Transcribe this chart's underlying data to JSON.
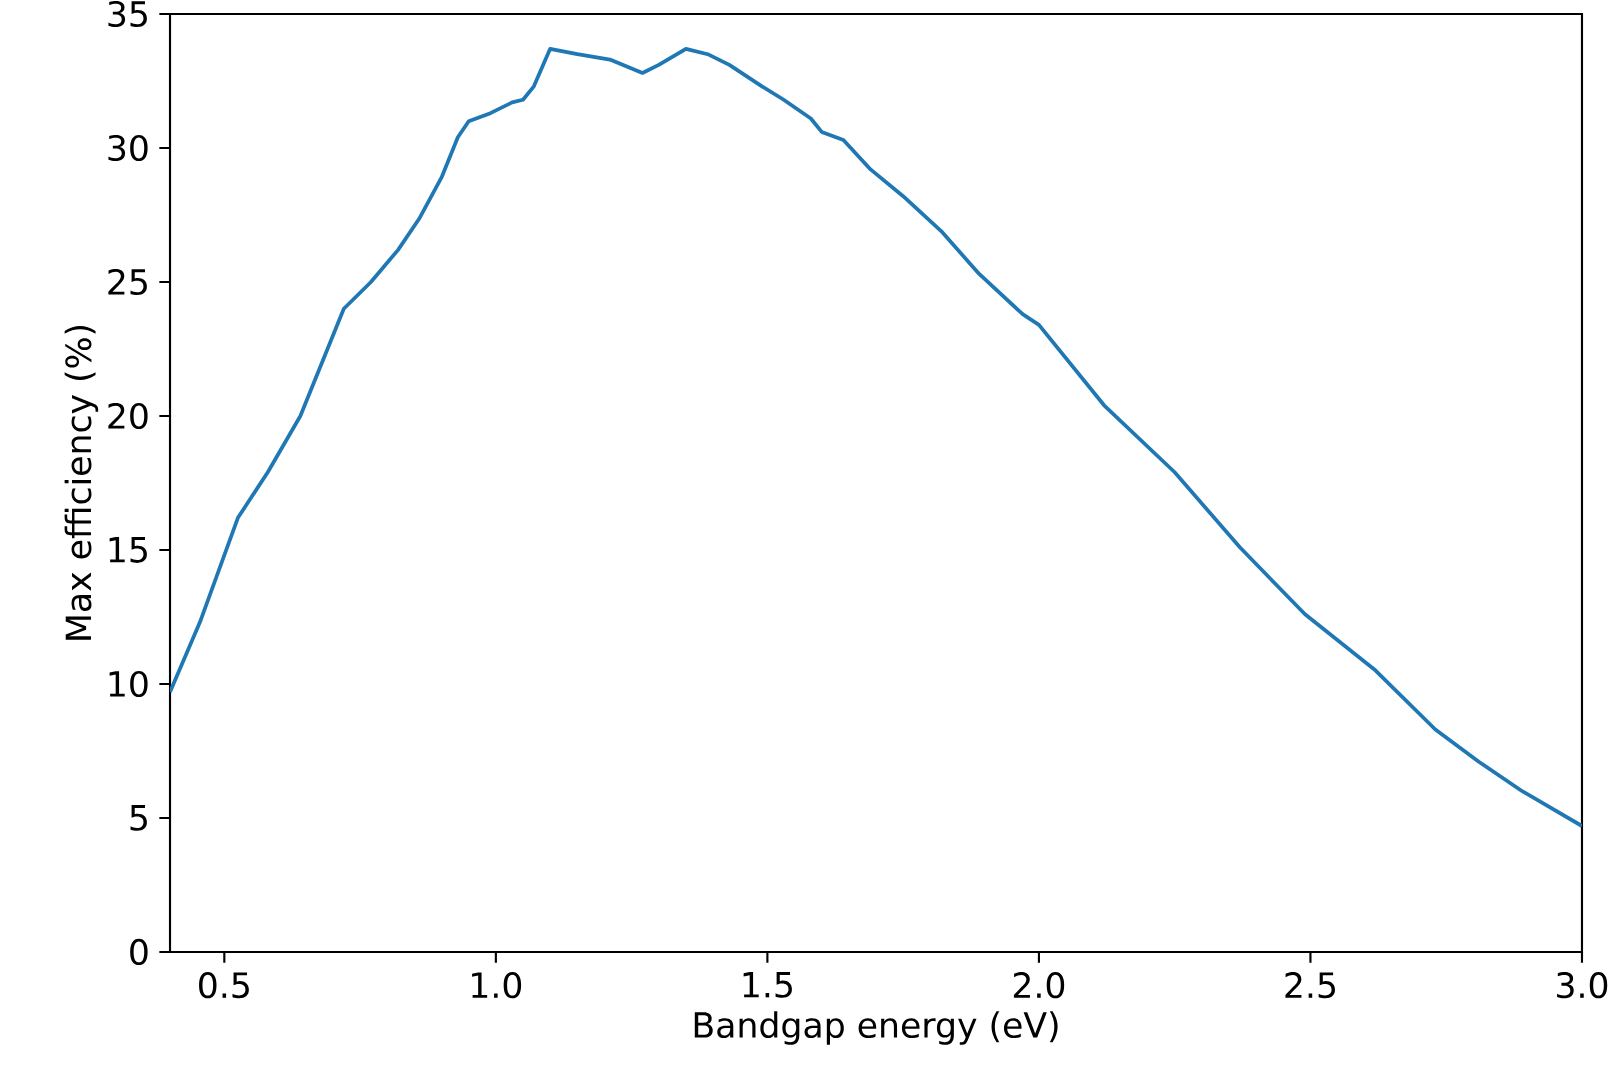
{
  "chart_data": {
    "type": "line",
    "xlabel": "Bandgap energy (eV)",
    "ylabel": "Max efficiency (%)",
    "xlim": [
      0.4,
      3.0
    ],
    "ylim": [
      0,
      35
    ],
    "xticks": [
      {
        "value": 0.5,
        "label": "0.5"
      },
      {
        "value": 1.0,
        "label": "1.0"
      },
      {
        "value": 1.5,
        "label": "1.5"
      },
      {
        "value": 2.0,
        "label": "2.0"
      },
      {
        "value": 2.5,
        "label": "2.5"
      },
      {
        "value": 3.0,
        "label": "3.0"
      }
    ],
    "yticks": [
      0,
      5,
      10,
      15,
      20,
      25,
      30,
      35
    ],
    "grid": false,
    "marker": "none",
    "line_style": "solid",
    "series": [
      {
        "color": "#1f77b4",
        "x": [
          0.4,
          0.455,
          0.525,
          0.58,
          0.64,
          0.69,
          0.72,
          0.77,
          0.82,
          0.86,
          0.9,
          0.93,
          0.95,
          0.99,
          1.03,
          1.05,
          1.07,
          1.1,
          1.15,
          1.21,
          1.27,
          1.3,
          1.35,
          1.39,
          1.43,
          1.49,
          1.53,
          1.58,
          1.6,
          1.64,
          1.69,
          1.75,
          1.82,
          1.89,
          1.97,
          2.0,
          2.12,
          2.25,
          2.37,
          2.49,
          2.62,
          2.73,
          2.81,
          2.89,
          3.0
        ],
        "values": [
          9.7,
          12.3,
          16.2,
          17.9,
          20.0,
          22.5,
          24.0,
          25.0,
          26.2,
          27.4,
          28.9,
          30.4,
          31.0,
          31.3,
          31.7,
          31.8,
          32.3,
          33.7,
          33.5,
          33.3,
          32.8,
          33.1,
          33.7,
          33.5,
          33.1,
          32.3,
          31.8,
          31.1,
          30.6,
          30.3,
          29.2,
          28.2,
          26.9,
          25.3,
          23.8,
          23.4,
          20.4,
          17.9,
          15.1,
          12.6,
          10.5,
          8.3,
          7.1,
          6.0,
          4.7
        ]
      }
    ]
  }
}
